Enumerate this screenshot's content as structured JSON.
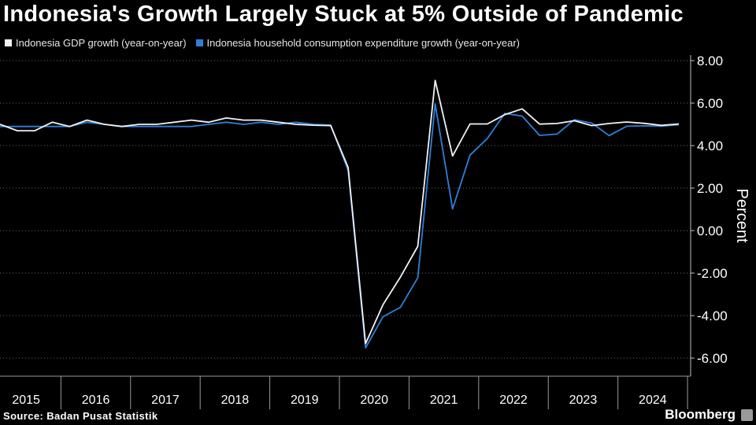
{
  "chart_data": {
    "type": "line",
    "title": "Indonesia's Growth Largely Stuck at 5% Outside of Pandemic",
    "ylabel": "Percent",
    "xlabel": "",
    "ylim": [
      -6.8,
      8.2
    ],
    "yticks": [
      "8.00",
      "6.00",
      "4.00",
      "2.00",
      "0.00",
      "-2.00",
      "-4.00",
      "-6.00"
    ],
    "ytick_values": [
      8,
      6,
      4,
      2,
      0,
      -2,
      -4,
      -6
    ],
    "year_labels": [
      "2015",
      "2016",
      "2017",
      "2018",
      "2019",
      "2020",
      "2021",
      "2022",
      "2023",
      "2024"
    ],
    "grid": true,
    "series": [
      {
        "name": "Indonesia GDP growth (year-on-year)",
        "color": "#f2f2f2",
        "values": [
          5.0,
          4.7,
          4.7,
          5.1,
          4.9,
          5.2,
          5.0,
          4.9,
          5.0,
          5.0,
          5.1,
          5.2,
          5.1,
          5.3,
          5.2,
          5.2,
          5.1,
          5.0,
          4.96,
          4.94,
          2.97,
          -5.32,
          -3.49,
          -2.19,
          -0.74,
          7.07,
          3.51,
          5.02,
          5.02,
          5.46,
          5.73,
          5.01,
          5.04,
          5.17,
          4.94,
          5.04,
          5.11,
          5.05,
          4.95,
          5.02
        ]
      },
      {
        "name": "Indonesia household consumption expenditure growth (year-on-year)",
        "color": "#2f7fd8",
        "values": [
          4.9,
          4.9,
          4.9,
          4.9,
          4.9,
          5.1,
          5.0,
          4.9,
          4.9,
          4.9,
          4.9,
          4.9,
          5.0,
          5.1,
          5.0,
          5.1,
          5.0,
          5.1,
          5.0,
          4.97,
          2.83,
          -5.52,
          -4.05,
          -3.61,
          -2.22,
          5.96,
          1.02,
          3.55,
          4.34,
          5.51,
          5.39,
          4.48,
          4.54,
          5.22,
          5.06,
          4.47,
          4.91,
          4.93,
          4.91,
          4.98
        ]
      }
    ]
  },
  "source": "Source: Badan Pusat Statistik",
  "brand": "Bloomberg"
}
